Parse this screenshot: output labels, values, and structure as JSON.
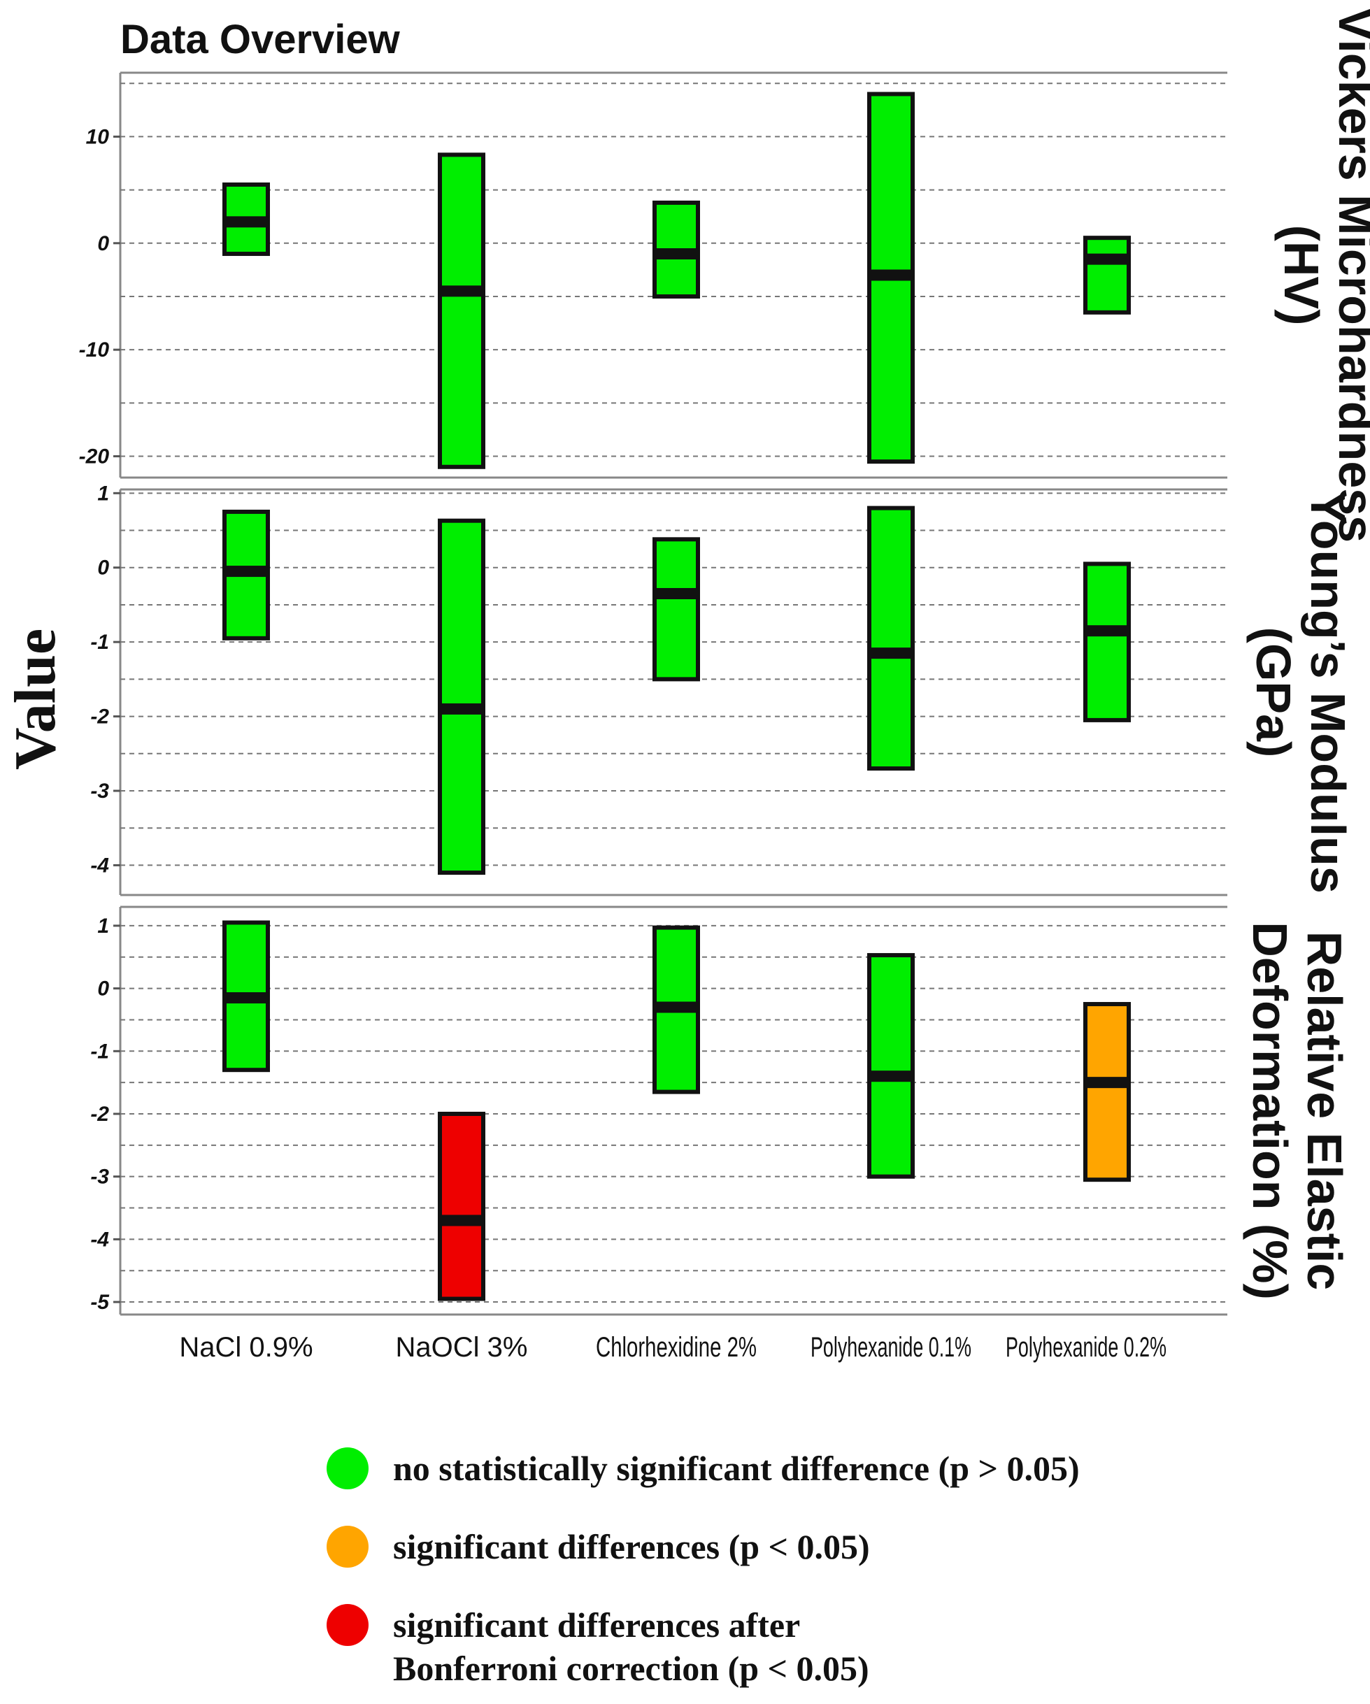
{
  "chart_data": {
    "type": "bar",
    "title": "Data Overview",
    "ylabel": "Value",
    "categories": [
      "NaCl 0.9%",
      "NaOCl 3%",
      "Chlorhexidine 2%",
      "Polyhexanide 0.1%",
      "Polyhexanide 0.2%"
    ],
    "panels": [
      {
        "title_lines": [
          "Vickers Microhardness",
          "(HV)"
        ],
        "ylim": [
          -22,
          16
        ],
        "yticks": [
          -20,
          -10,
          0,
          10
        ],
        "grid_step": 5,
        "series": [
          {
            "low": -1,
            "high": 5.5,
            "mid": 2,
            "significance": "ns"
          },
          {
            "low": -21,
            "high": 8.3,
            "mid": -4.5,
            "significance": "ns"
          },
          {
            "low": -5,
            "high": 3.8,
            "mid": -1,
            "significance": "ns"
          },
          {
            "low": -20.5,
            "high": 14,
            "mid": -3,
            "significance": "ns"
          },
          {
            "low": -6.5,
            "high": 0.5,
            "mid": -1.5,
            "significance": "ns"
          }
        ]
      },
      {
        "title_lines": [
          "Young’s Modulus",
          "(GPa)"
        ],
        "ylim": [
          -4.4,
          1.05
        ],
        "yticks": [
          -4,
          -3,
          -2,
          -1,
          0,
          1
        ],
        "grid_step": 0.5,
        "series": [
          {
            "low": -0.95,
            "high": 0.75,
            "mid": -0.05,
            "significance": "ns"
          },
          {
            "low": -4.1,
            "high": 0.63,
            "mid": -1.9,
            "significance": "ns"
          },
          {
            "low": -1.5,
            "high": 0.38,
            "mid": -0.35,
            "significance": "ns"
          },
          {
            "low": -2.7,
            "high": 0.8,
            "mid": -1.15,
            "significance": "ns"
          },
          {
            "low": -2.05,
            "high": 0.05,
            "mid": -0.85,
            "significance": "ns"
          }
        ]
      },
      {
        "title_lines": [
          "Relative Elastic",
          "Deformation (%)"
        ],
        "ylim": [
          -5.2,
          1.3
        ],
        "yticks": [
          -5,
          -4,
          -3,
          -2,
          -1,
          0,
          1
        ],
        "grid_step": 0.5,
        "series": [
          {
            "low": -1.3,
            "high": 1.05,
            "mid": -0.15,
            "significance": "ns"
          },
          {
            "low": -4.95,
            "high": -2,
            "mid": -3.7,
            "significance": "bonferroni"
          },
          {
            "low": -1.65,
            "high": 0.97,
            "mid": -0.3,
            "significance": "ns"
          },
          {
            "low": -3,
            "high": 0.53,
            "mid": -1.4,
            "significance": "ns"
          },
          {
            "low": -3.05,
            "high": -0.25,
            "mid": -1.5,
            "significance": "sig"
          }
        ]
      }
    ],
    "grid": true,
    "legend": [
      {
        "key": "ns",
        "lines": [
          "no statistically significant difference (p > 0.05)"
        ],
        "color": "#00ee00"
      },
      {
        "key": "sig",
        "lines": [
          "significant differences (p < 0.05)"
        ],
        "color": "#ffa500"
      },
      {
        "key": "bonferroni",
        "lines": [
          "significant differences after",
          "Bonferroni correction (p < 0.05)"
        ],
        "color": "#ee0000"
      }
    ]
  }
}
